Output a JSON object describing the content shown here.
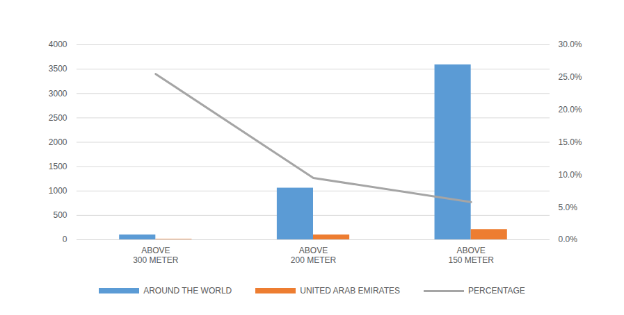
{
  "chart_data": {
    "type": "bar",
    "categories": [
      "ABOVE\n300 METER",
      "ABOVE\n200 METER",
      "ABOVE\n150 METER"
    ],
    "series": [
      {
        "name": "AROUND THE WORLD",
        "color": "#5b9bd5",
        "type": "bar",
        "values": [
          100,
          1060,
          3590
        ]
      },
      {
        "name": "UNITED ARAB EMIRATES",
        "color": "#ed7d31",
        "type": "bar",
        "values": [
          10,
          100,
          210
        ]
      },
      {
        "name": "PERCENTAGE",
        "color": "#a5a5a5",
        "type": "line",
        "axis": "y2",
        "values": [
          25.5,
          9.5,
          5.8
        ]
      }
    ],
    "ylim": [
      0,
      4000
    ],
    "yticks": [
      0,
      500,
      1000,
      1500,
      2000,
      2500,
      3000,
      3500,
      4000
    ],
    "y2lim": [
      0,
      30
    ],
    "y2ticks": [
      {
        "value": 0,
        "label": "0.0%"
      },
      {
        "value": 5,
        "label": "5.0%"
      },
      {
        "value": 10,
        "label": "10.0%"
      },
      {
        "value": 15,
        "label": "15.0%"
      },
      {
        "value": 20,
        "label": "20.0%"
      },
      {
        "value": 25,
        "label": "25.0%"
      },
      {
        "value": 30,
        "label": "30.0%"
      }
    ],
    "grid": true,
    "legend": "bottom"
  }
}
